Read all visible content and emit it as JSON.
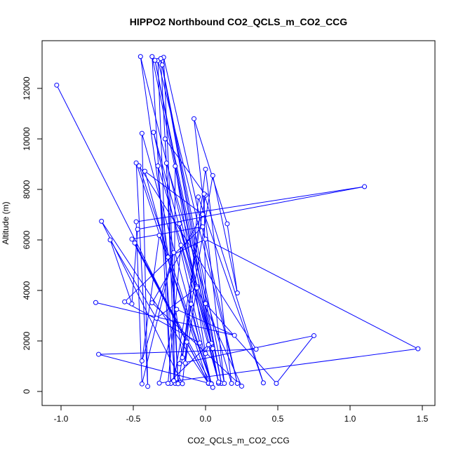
{
  "chart_data": {
    "type": "line",
    "title": "HIPPO2 Northbound CO2_QCLS_m_CO2_CCG",
    "xlabel": "CO2_QCLS_m_CO2_CCG",
    "ylabel": "Altitude (m)",
    "xlim": [
      -1.0,
      1.5
    ],
    "ylim": [
      0,
      13000
    ],
    "xticks": [
      "-1.0",
      "-0.5",
      "0.0",
      "0.5",
      "1.0",
      "1.5"
    ],
    "yticks": [
      "0",
      "2000",
      "4000",
      "6000",
      "8000",
      "10000",
      "12000"
    ],
    "grid": false,
    "legend": "none",
    "series_color": "#0000ff",
    "points": [
      [
        -1.03,
        12130
      ],
      [
        -0.13,
        1960
      ],
      [
        -0.16,
        310
      ],
      [
        -0.72,
        6740
      ],
      [
        0.02,
        320
      ],
      [
        -0.48,
        9050
      ],
      [
        -0.4,
        200
      ],
      [
        -0.44,
        10220
      ],
      [
        0.04,
        310
      ],
      [
        -0.36,
        10260
      ],
      [
        0.05,
        1700
      ],
      [
        -0.33,
        8930
      ],
      [
        -0.21,
        320
      ],
      [
        -0.27,
        9040
      ],
      [
        0.18,
        320
      ],
      [
        0.0,
        8800
      ],
      [
        -0.16,
        1340
      ],
      [
        -0.45,
        13260
      ],
      [
        0.04,
        1910
      ],
      [
        -0.37,
        13260
      ],
      [
        -0.24,
        320
      ],
      [
        -0.33,
        13100
      ],
      [
        0.22,
        320
      ],
      [
        -0.29,
        13230
      ],
      [
        -0.19,
        320
      ],
      [
        -0.31,
        13180
      ],
      [
        0.11,
        320
      ],
      [
        -0.35,
        13110
      ],
      [
        0.09,
        320
      ],
      [
        -0.3,
        12930
      ],
      [
        0.13,
        320
      ],
      [
        -0.08,
        10800
      ],
      [
        0.15,
        6640
      ],
      [
        0.22,
        3900
      ],
      [
        0.05,
        8550
      ],
      [
        -0.19,
        310
      ],
      [
        -0.28,
        10000
      ],
      [
        0.0,
        7770
      ],
      [
        -0.22,
        420
      ],
      [
        -0.21,
        8920
      ],
      [
        0.0,
        1500
      ],
      [
        0.02,
        1850
      ],
      [
        -0.26,
        320
      ],
      [
        -0.17,
        5790
      ],
      [
        0.09,
        370
      ],
      [
        -0.18,
        6640
      ],
      [
        -0.06,
        4160
      ],
      [
        -0.14,
        1120
      ],
      [
        -0.05,
        7700
      ],
      [
        0.4,
        340
      ],
      [
        -0.01,
        7820
      ],
      [
        0.0,
        3480
      ],
      [
        0.49,
        320
      ],
      [
        0.75,
        2210
      ],
      [
        -0.18,
        1100
      ],
      [
        -0.1,
        3460
      ],
      [
        -0.04,
        1920
      ],
      [
        -0.56,
        3550
      ],
      [
        -0.02,
        6520
      ],
      [
        -0.51,
        6030
      ],
      [
        0.02,
        330
      ],
      [
        -0.49,
        5880
      ],
      [
        0.04,
        300
      ],
      [
        -0.74,
        1470
      ],
      [
        0.35,
        1670
      ],
      [
        -0.46,
        8930
      ],
      [
        0.05,
        160
      ],
      [
        -0.32,
        6180
      ],
      [
        -0.44,
        1210
      ],
      [
        -0.22,
        5500
      ],
      [
        -0.44,
        300
      ],
      [
        -0.48,
        6720
      ],
      [
        1.1,
        8110
      ],
      [
        -0.47,
        6420
      ],
      [
        -0.51,
        3470
      ],
      [
        -0.66,
        6000
      ],
      [
        -0.34,
        2900
      ],
      [
        -0.06,
        4100
      ],
      [
        0.25,
        210
      ],
      [
        -0.37,
        3510
      ],
      [
        -0.02,
        7010
      ],
      [
        -0.42,
        8720
      ],
      [
        -0.26,
        5320
      ],
      [
        0.0,
        6030
      ],
      [
        1.47,
        1690
      ],
      [
        -0.32,
        330
      ],
      [
        -0.2,
        3250
      ],
      [
        0.2,
        2220
      ],
      [
        -0.76,
        3520
      ]
    ]
  }
}
